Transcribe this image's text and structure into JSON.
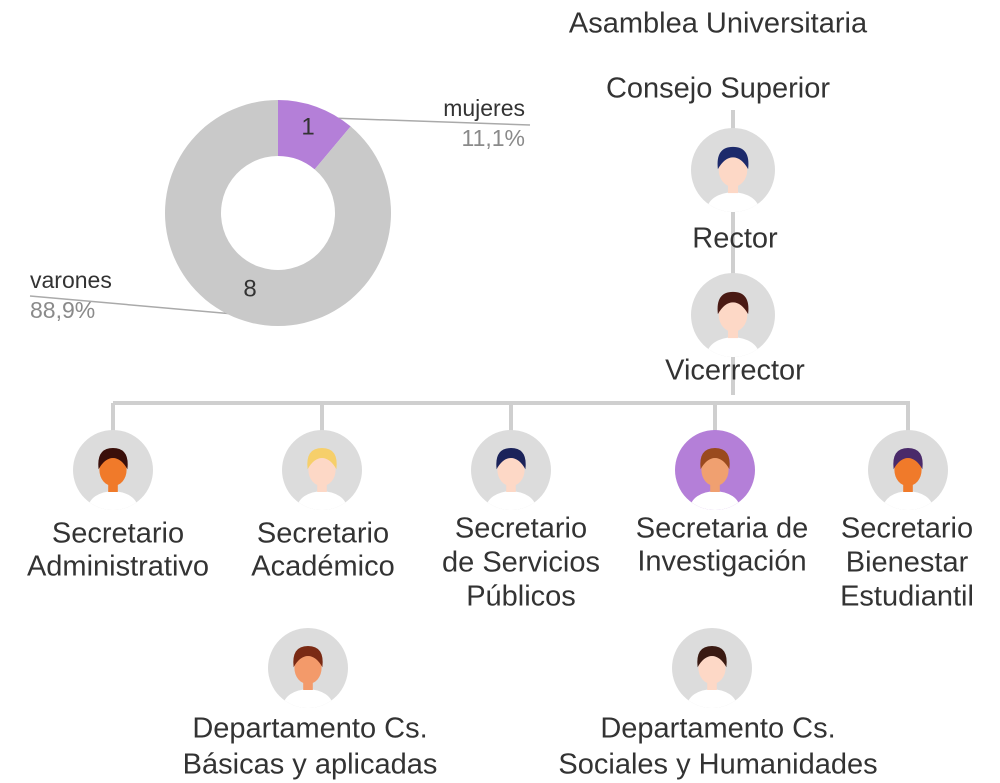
{
  "chart_data": {
    "type": "pie",
    "categories": [
      "mujeres",
      "varones"
    ],
    "values": [
      1,
      8
    ],
    "percent_labels": [
      "11,1%",
      "88,9%"
    ],
    "colors": [
      "#b47fd8",
      "#c9c9c9"
    ]
  },
  "nodes": [
    {
      "lines": [
        "Asamblea Universitaria"
      ]
    },
    {
      "lines": [
        "Consejo Superior"
      ]
    },
    {
      "lines": [
        "Rector"
      ]
    },
    {
      "lines": [
        "Vicerrector"
      ]
    },
    {
      "lines": [
        "Secretario",
        "Administrativo"
      ]
    },
    {
      "lines": [
        "Secretario",
        "Académico"
      ]
    },
    {
      "lines": [
        "Secretario",
        "de Servicios",
        "Públicos"
      ]
    },
    {
      "lines": [
        "Secretaria de",
        "Investigación"
      ]
    },
    {
      "lines": [
        "Secretario",
        "Bienestar",
        "Estudiantil"
      ]
    },
    {
      "lines": [
        "Departamento Cs.",
        "Básicas y aplicadas"
      ]
    },
    {
      "lines": [
        "Departamento Cs.",
        "Sociales y Humanidades"
      ]
    }
  ]
}
